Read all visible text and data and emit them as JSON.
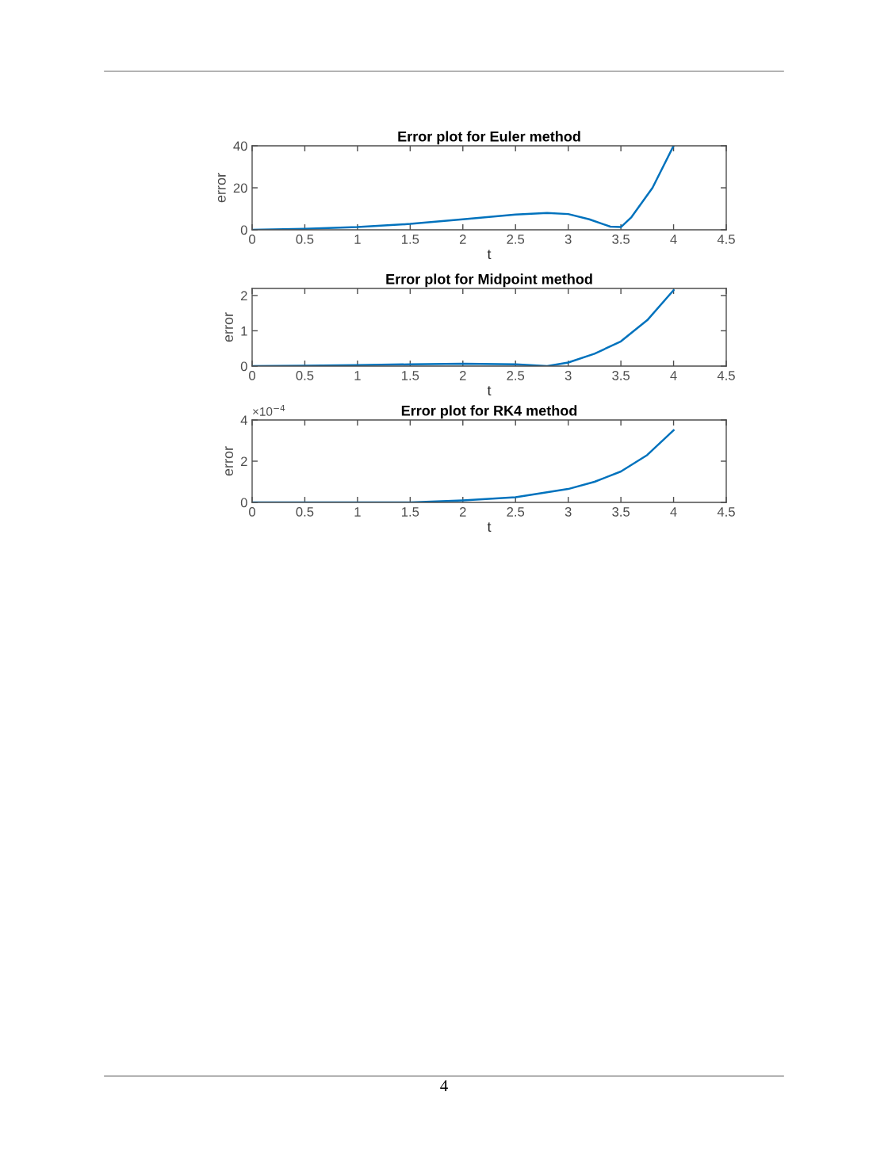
{
  "chart_data": [
    {
      "type": "line",
      "title": "Error plot for Euler method",
      "xlabel": "t",
      "ylabel": "error",
      "xlim": [
        0,
        4.5
      ],
      "xticks": [
        0,
        0.5,
        1,
        1.5,
        2,
        2.5,
        3,
        3.5,
        4,
        4.5
      ],
      "ylim": [
        0,
        40
      ],
      "yticks": [
        0,
        20,
        40
      ],
      "grid": false,
      "legend": false,
      "series": [
        {
          "color": "#0072bd",
          "x": [
            0,
            0.5,
            1,
            1.5,
            2,
            2.5,
            2.8,
            3,
            3.2,
            3.4,
            3.5,
            3.6,
            3.8,
            4
          ],
          "values": [
            0,
            0.5,
            1.3,
            2.8,
            5,
            7.3,
            8,
            7.5,
            5,
            1.5,
            1.3,
            6,
            20,
            40
          ]
        }
      ]
    },
    {
      "type": "line",
      "title": "Error plot for Midpoint method",
      "xlabel": "t",
      "ylabel": "error",
      "xlim": [
        0,
        4.5
      ],
      "xticks": [
        0,
        0.5,
        1,
        1.5,
        2,
        2.5,
        3,
        3.5,
        4,
        4.5
      ],
      "ylim": [
        0,
        2.2
      ],
      "yticks": [
        0,
        1,
        2
      ],
      "grid": false,
      "legend": false,
      "series": [
        {
          "color": "#0072bd",
          "x": [
            0,
            0.5,
            1,
            1.5,
            2,
            2.5,
            2.8,
            3,
            3.25,
            3.5,
            3.75,
            4
          ],
          "values": [
            0,
            0.01,
            0.03,
            0.05,
            0.07,
            0.05,
            0,
            0.1,
            0.35,
            0.7,
            1.3,
            2.15
          ]
        }
      ]
    },
    {
      "type": "line",
      "title": "Error plot for RK4 method",
      "xlabel": "t",
      "ylabel": "error",
      "xlim": [
        0,
        4.5
      ],
      "xticks": [
        0,
        0.5,
        1,
        1.5,
        2,
        2.5,
        3,
        3.5,
        4,
        4.5
      ],
      "ylim": [
        0,
        4
      ],
      "yticks": [
        0,
        2,
        4
      ],
      "grid": false,
      "legend": false,
      "annotations": [
        "×10$^{−4}$",
        "4"
      ],
      "series": [
        {
          "color": "#0072bd",
          "x": [
            0,
            1,
            1.5,
            2,
            2.5,
            3,
            3.25,
            3.5,
            3.75,
            4
          ],
          "values": [
            0,
            0,
            0,
            0.1,
            0.25,
            0.65,
            1,
            1.5,
            2.3,
            3.5
          ]
        }
      ]
    }
  ]
}
